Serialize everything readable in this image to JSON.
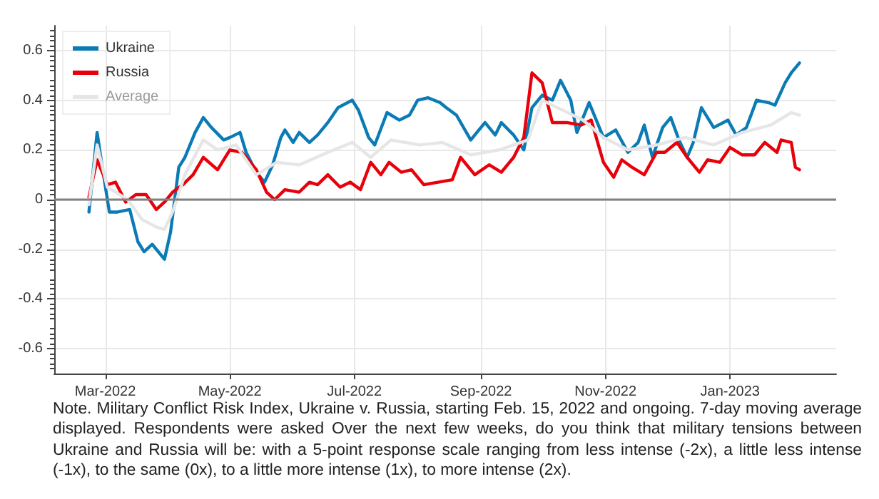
{
  "chart_data": {
    "type": "line",
    "annotations": [
      "Note. Military Conflict Risk Index, Ukraine v. Russia, starting Feb. 15, 2022 and ongoing. 7-day moving average displayed. Respondents were asked Over the next few weeks, do you think that military tensions between Ukraine and Russia will be: with a 5-point response scale ranging from less intense (-2x), a little less intense (-1x), to the same (0x), to a little more intense (1x), to more intense (2x)."
    ],
    "xlim": [
      "2022-02-04",
      "2023-02-22"
    ],
    "xticks": [
      {
        "value": "2022-03-01",
        "label": "Mar-2022"
      },
      {
        "value": "2022-05-01",
        "label": "May-2022"
      },
      {
        "value": "2022-07-01",
        "label": "Jul-2022"
      },
      {
        "value": "2022-09-01",
        "label": "Sep-2022"
      },
      {
        "value": "2022-11-01",
        "label": "Nov-2022"
      },
      {
        "value": "2023-01-01",
        "label": "Jan-2023"
      }
    ],
    "ylim": [
      -0.7,
      0.7
    ],
    "yticks": [
      -0.6,
      -0.4,
      -0.2,
      0,
      0.2,
      0.4,
      0.6
    ],
    "grid": true,
    "legend": "top left",
    "marker": "none",
    "line_style": "solid",
    "ref_lines": [
      {
        "axis": "y",
        "value": 0,
        "color": "#808080"
      }
    ],
    "series": [
      {
        "name": "Ukraine",
        "color": "#0a7bb5",
        "x": [
          "2022-02-21",
          "2022-02-25",
          "2022-02-27",
          "2022-03-03",
          "2022-03-07",
          "2022-03-13",
          "2022-03-17",
          "2022-03-20",
          "2022-03-24",
          "2022-03-30",
          "2022-04-02",
          "2022-04-06",
          "2022-04-09",
          "2022-04-14",
          "2022-04-18",
          "2022-04-22",
          "2022-04-28",
          "2022-05-01",
          "2022-05-06",
          "2022-05-09",
          "2022-05-14",
          "2022-05-18",
          "2022-05-22",
          "2022-05-26",
          "2022-05-28",
          "2022-06-01",
          "2022-06-04",
          "2022-06-09",
          "2022-06-13",
          "2022-06-18",
          "2022-06-23",
          "2022-06-30",
          "2022-07-03",
          "2022-07-08",
          "2022-07-11",
          "2022-07-17",
          "2022-07-23",
          "2022-07-28",
          "2022-08-01",
          "2022-08-06",
          "2022-08-12",
          "2022-08-15",
          "2022-08-20",
          "2022-08-27",
          "2022-09-03",
          "2022-09-08",
          "2022-09-11",
          "2022-09-17",
          "2022-09-22",
          "2022-09-26",
          "2022-10-01",
          "2022-10-06",
          "2022-10-10",
          "2022-10-15",
          "2022-10-18",
          "2022-10-24",
          "2022-10-31",
          "2022-11-06",
          "2022-11-12",
          "2022-11-17",
          "2022-11-20",
          "2022-11-24",
          "2022-11-29",
          "2022-12-03",
          "2022-12-07",
          "2022-12-11",
          "2022-12-14",
          "2022-12-18",
          "2022-12-24",
          "2022-12-31",
          "2023-01-04",
          "2023-01-09",
          "2023-01-14",
          "2023-01-20",
          "2023-01-23",
          "2023-01-28",
          "2023-01-31",
          "2023-02-04"
        ],
        "values": [
          -0.05,
          0.27,
          0.16,
          -0.05,
          -0.05,
          -0.04,
          -0.17,
          -0.21,
          -0.18,
          -0.24,
          -0.13,
          0.13,
          0.17,
          0.27,
          0.33,
          0.29,
          0.24,
          0.25,
          0.27,
          0.19,
          0.11,
          0.07,
          0.14,
          0.25,
          0.28,
          0.23,
          0.27,
          0.23,
          0.26,
          0.31,
          0.37,
          0.4,
          0.36,
          0.25,
          0.22,
          0.35,
          0.32,
          0.34,
          0.4,
          0.41,
          0.39,
          0.37,
          0.34,
          0.24,
          0.31,
          0.26,
          0.31,
          0.26,
          0.2,
          0.37,
          0.42,
          0.4,
          0.48,
          0.4,
          0.27,
          0.39,
          0.25,
          0.28,
          0.19,
          0.23,
          0.3,
          0.17,
          0.29,
          0.33,
          0.24,
          0.17,
          0.23,
          0.37,
          0.29,
          0.32,
          0.26,
          0.29,
          0.4,
          0.39,
          0.38,
          0.47,
          0.51,
          0.55
        ]
      },
      {
        "name": "Russia",
        "color": "#e8000b",
        "x": [
          "2022-02-21",
          "2022-02-25",
          "2022-03-02",
          "2022-03-06",
          "2022-03-11",
          "2022-03-16",
          "2022-03-21",
          "2022-03-26",
          "2022-03-30",
          "2022-04-03",
          "2022-04-08",
          "2022-04-13",
          "2022-04-18",
          "2022-04-25",
          "2022-05-01",
          "2022-05-07",
          "2022-05-14",
          "2022-05-19",
          "2022-05-23",
          "2022-05-28",
          "2022-06-04",
          "2022-06-09",
          "2022-06-13",
          "2022-06-18",
          "2022-06-24",
          "2022-06-29",
          "2022-07-04",
          "2022-07-09",
          "2022-07-14",
          "2022-07-18",
          "2022-07-24",
          "2022-07-29",
          "2022-08-04",
          "2022-08-11",
          "2022-08-18",
          "2022-08-22",
          "2022-08-29",
          "2022-09-05",
          "2022-09-11",
          "2022-09-17",
          "2022-09-22",
          "2022-09-26",
          "2022-10-01",
          "2022-10-06",
          "2022-10-13",
          "2022-10-20",
          "2022-10-25",
          "2022-10-31",
          "2022-11-05",
          "2022-11-09",
          "2022-11-14",
          "2022-11-20",
          "2022-11-26",
          "2022-11-30",
          "2022-12-06",
          "2022-12-11",
          "2022-12-17",
          "2022-12-21",
          "2022-12-27",
          "2023-01-01",
          "2023-01-07",
          "2023-01-13",
          "2023-01-18",
          "2023-01-24",
          "2023-01-26",
          "2023-01-31",
          "2023-02-02",
          "2023-02-04"
        ],
        "values": [
          0.01,
          0.16,
          0.06,
          0.07,
          -0.01,
          0.02,
          0.02,
          -0.04,
          -0.01,
          0.03,
          0.06,
          0.1,
          0.17,
          0.12,
          0.2,
          0.19,
          0.12,
          0.03,
          0.0,
          0.04,
          0.03,
          0.07,
          0.06,
          0.1,
          0.05,
          0.07,
          0.04,
          0.15,
          0.1,
          0.15,
          0.11,
          0.12,
          0.06,
          0.07,
          0.08,
          0.17,
          0.1,
          0.14,
          0.11,
          0.17,
          0.25,
          0.51,
          0.47,
          0.31,
          0.31,
          0.3,
          0.32,
          0.15,
          0.09,
          0.16,
          0.13,
          0.1,
          0.19,
          0.19,
          0.23,
          0.17,
          0.11,
          0.16,
          0.15,
          0.21,
          0.18,
          0.18,
          0.23,
          0.19,
          0.24,
          0.23,
          0.13,
          0.12
        ]
      },
      {
        "name": "Average",
        "color": "#e6e6e6",
        "x": [
          "2022-02-21",
          "2022-02-25",
          "2022-03-02",
          "2022-03-12",
          "2022-03-19",
          "2022-03-26",
          "2022-03-30",
          "2022-04-03",
          "2022-04-09",
          "2022-04-18",
          "2022-04-25",
          "2022-05-04",
          "2022-05-14",
          "2022-05-24",
          "2022-06-04",
          "2022-06-18",
          "2022-06-30",
          "2022-07-09",
          "2022-07-19",
          "2022-08-02",
          "2022-08-13",
          "2022-08-27",
          "2022-09-10",
          "2022-09-24",
          "2022-10-01",
          "2022-10-11",
          "2022-10-21",
          "2022-10-31",
          "2022-11-12",
          "2022-11-26",
          "2022-12-10",
          "2022-12-24",
          "2023-01-07",
          "2023-01-21",
          "2023-01-31",
          "2023-02-04"
        ],
        "values": [
          -0.02,
          0.22,
          0.05,
          0.0,
          -0.08,
          -0.11,
          -0.12,
          -0.05,
          0.1,
          0.24,
          0.2,
          0.22,
          0.1,
          0.15,
          0.14,
          0.19,
          0.23,
          0.17,
          0.24,
          0.22,
          0.23,
          0.18,
          0.2,
          0.24,
          0.4,
          0.36,
          0.32,
          0.25,
          0.2,
          0.22,
          0.25,
          0.22,
          0.27,
          0.3,
          0.35,
          0.34
        ]
      }
    ]
  }
}
